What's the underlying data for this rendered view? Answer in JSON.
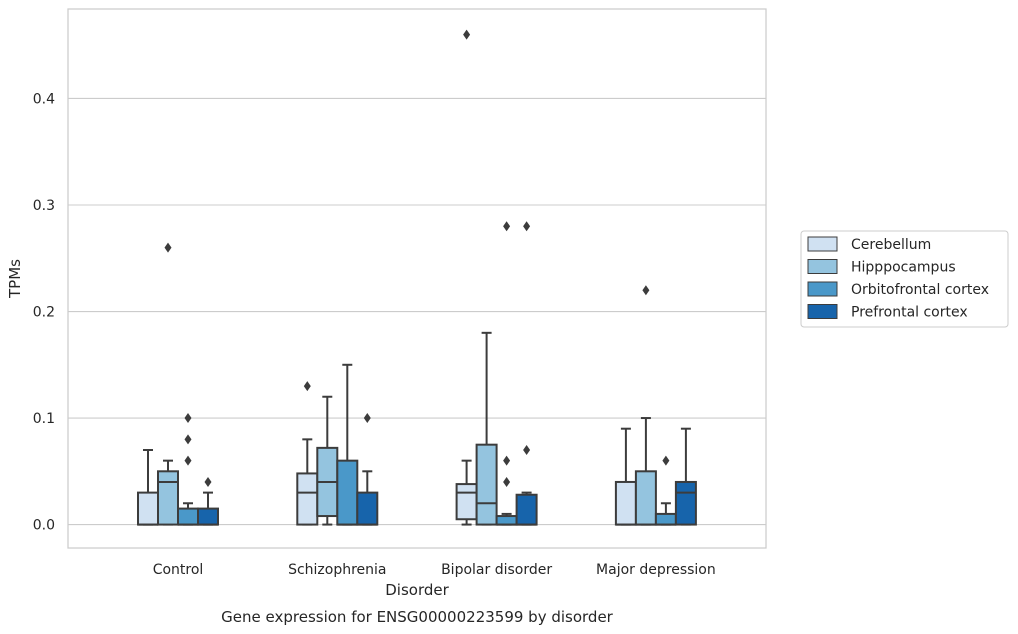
{
  "chart_data": {
    "type": "box",
    "caption": "Gene expression for ENSG00000223599 by disorder",
    "xlabel": "Disorder",
    "ylabel": "TPMs",
    "ylim": [
      -0.022,
      0.484
    ],
    "yticks": [
      0.0,
      0.1,
      0.2,
      0.3,
      0.4
    ],
    "ytick_labels": [
      "0.0",
      "0.1",
      "0.2",
      "0.3",
      "0.4"
    ],
    "grid": "horizontal",
    "legend_position": "right",
    "categories": [
      "Control",
      "Schizophrenia",
      "Bipolar disorder",
      "Major depression"
    ],
    "series": [
      {
        "name": "Cerebellum",
        "color": "#d0e1f2",
        "boxes": [
          {
            "whislo": 0.0,
            "q1": 0.0,
            "med": 0.0,
            "q3": 0.03,
            "whishi": 0.07,
            "fliers": []
          },
          {
            "whislo": 0.0,
            "q1": 0.0,
            "med": 0.03,
            "q3": 0.048,
            "whishi": 0.08,
            "fliers": [
              0.13
            ]
          },
          {
            "whislo": 0.0,
            "q1": 0.005,
            "med": 0.03,
            "q3": 0.038,
            "whishi": 0.06,
            "fliers": [
              0.46
            ]
          },
          {
            "whislo": 0.0,
            "q1": 0.0,
            "med": 0.0,
            "q3": 0.04,
            "whishi": 0.09,
            "fliers": []
          }
        ]
      },
      {
        "name": "Hipppocampus",
        "color": "#94c4df",
        "boxes": [
          {
            "whislo": 0.0,
            "q1": 0.0,
            "med": 0.04,
            "q3": 0.05,
            "whishi": 0.06,
            "fliers": [
              0.26
            ]
          },
          {
            "whislo": 0.0,
            "q1": 0.008,
            "med": 0.04,
            "q3": 0.072,
            "whishi": 0.12,
            "fliers": []
          },
          {
            "whislo": 0.0,
            "q1": 0.0,
            "med": 0.02,
            "q3": 0.075,
            "whishi": 0.18,
            "fliers": []
          },
          {
            "whislo": 0.0,
            "q1": 0.0,
            "med": 0.0,
            "q3": 0.05,
            "whishi": 0.1,
            "fliers": [
              0.22
            ]
          }
        ]
      },
      {
        "name": "Orbitofrontal cortex",
        "color": "#4a98c9",
        "boxes": [
          {
            "whislo": 0.0,
            "q1": 0.0,
            "med": 0.0,
            "q3": 0.015,
            "whishi": 0.02,
            "fliers": [
              0.06,
              0.08,
              0.1
            ]
          },
          {
            "whislo": 0.0,
            "q1": 0.0,
            "med": 0.0,
            "q3": 0.06,
            "whishi": 0.15,
            "fliers": []
          },
          {
            "whislo": 0.0,
            "q1": 0.0,
            "med": 0.0,
            "q3": 0.008,
            "whishi": 0.01,
            "fliers": [
              0.04,
              0.06,
              0.28
            ]
          },
          {
            "whislo": 0.0,
            "q1": 0.0,
            "med": 0.0,
            "q3": 0.01,
            "whishi": 0.02,
            "fliers": [
              0.06
            ]
          }
        ]
      },
      {
        "name": "Prefrontal cortex",
        "color": "#1764ab",
        "boxes": [
          {
            "whislo": 0.0,
            "q1": 0.0,
            "med": 0.0,
            "q3": 0.015,
            "whishi": 0.03,
            "fliers": [
              0.04
            ]
          },
          {
            "whislo": 0.0,
            "q1": 0.0,
            "med": 0.0,
            "q3": 0.03,
            "whishi": 0.05,
            "fliers": [
              0.1
            ]
          },
          {
            "whislo": 0.0,
            "q1": 0.0,
            "med": 0.0,
            "q3": 0.028,
            "whishi": 0.03,
            "fliers": [
              0.07,
              0.28
            ]
          },
          {
            "whislo": 0.0,
            "q1": 0.0,
            "med": 0.03,
            "q3": 0.04,
            "whishi": 0.09,
            "fliers": []
          }
        ]
      }
    ]
  }
}
